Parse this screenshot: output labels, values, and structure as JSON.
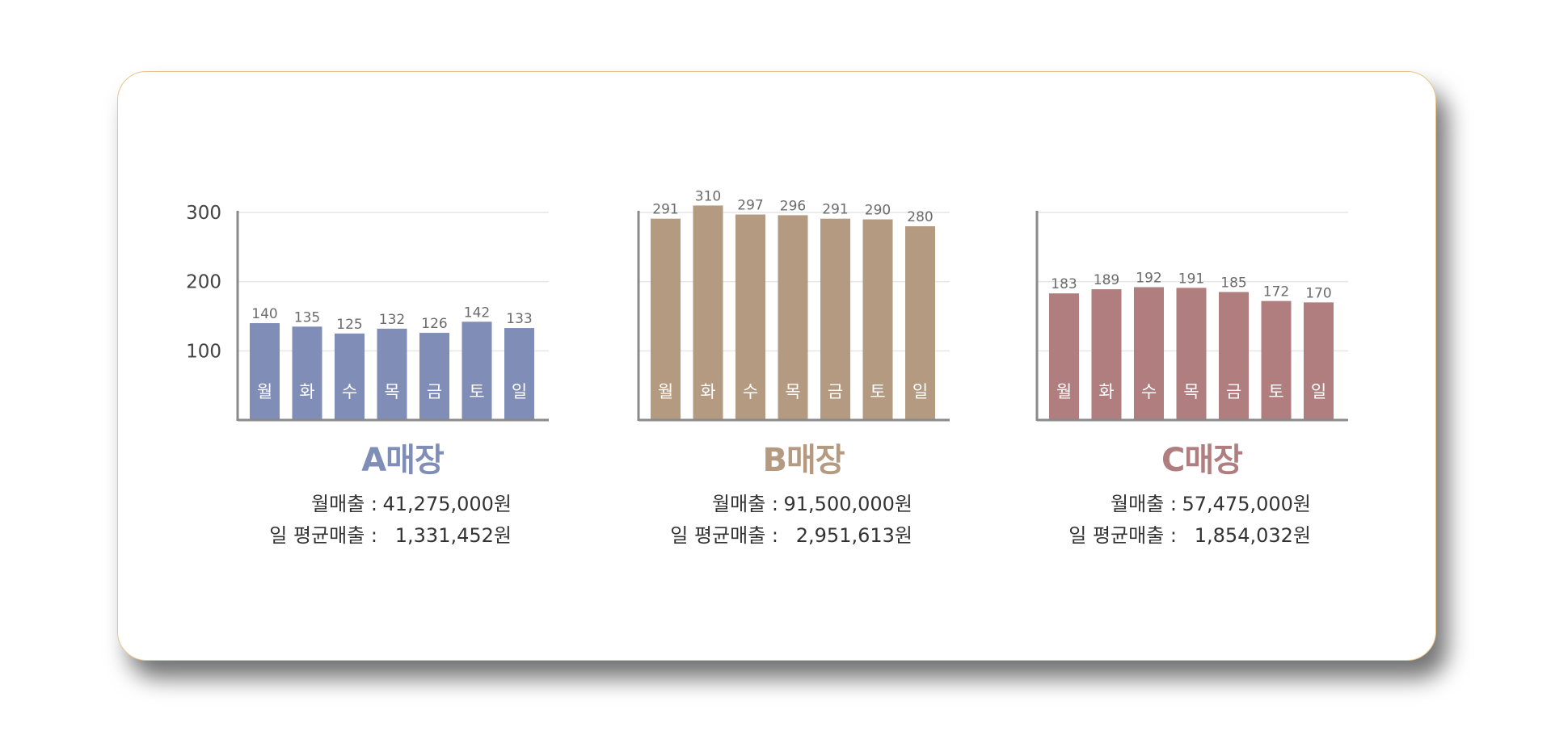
{
  "chart_data": [
    {
      "type": "bar",
      "title": "A매장",
      "categories": [
        "월",
        "화",
        "수",
        "목",
        "금",
        "토",
        "일"
      ],
      "values": [
        140,
        135,
        125,
        132,
        126,
        142,
        133
      ],
      "ylim": [
        0,
        300
      ],
      "yticks": [
        "100",
        "200",
        "300"
      ],
      "grid": true,
      "color": "#7f8db7",
      "stats": {
        "monthly_label": "월매출 :",
        "monthly_value": "41,275,000원",
        "daily_label": "일 평균매출 :",
        "daily_value": "1,331,452원"
      }
    },
    {
      "type": "bar",
      "title": "B매장",
      "categories": [
        "월",
        "화",
        "수",
        "목",
        "금",
        "토",
        "일"
      ],
      "values": [
        291,
        310,
        297,
        296,
        291,
        290,
        280
      ],
      "ylim": [
        0,
        300
      ],
      "grid": true,
      "color": "#b39a81",
      "stats": {
        "monthly_label": "월매출 :",
        "monthly_value": "91,500,000원",
        "daily_label": "일 평균매출 :",
        "daily_value": "2,951,613원"
      }
    },
    {
      "type": "bar",
      "title": "C매장",
      "categories": [
        "월",
        "화",
        "수",
        "목",
        "금",
        "토",
        "일"
      ],
      "values": [
        183,
        189,
        192,
        191,
        185,
        172,
        170
      ],
      "ylim": [
        0,
        300
      ],
      "grid": true,
      "color": "#b07e7e",
      "stats": {
        "monthly_label": "월매출 :",
        "monthly_value": "57,475,000원",
        "daily_label": "일 평균매출 :",
        "daily_value": "1,854,032원"
      }
    }
  ]
}
